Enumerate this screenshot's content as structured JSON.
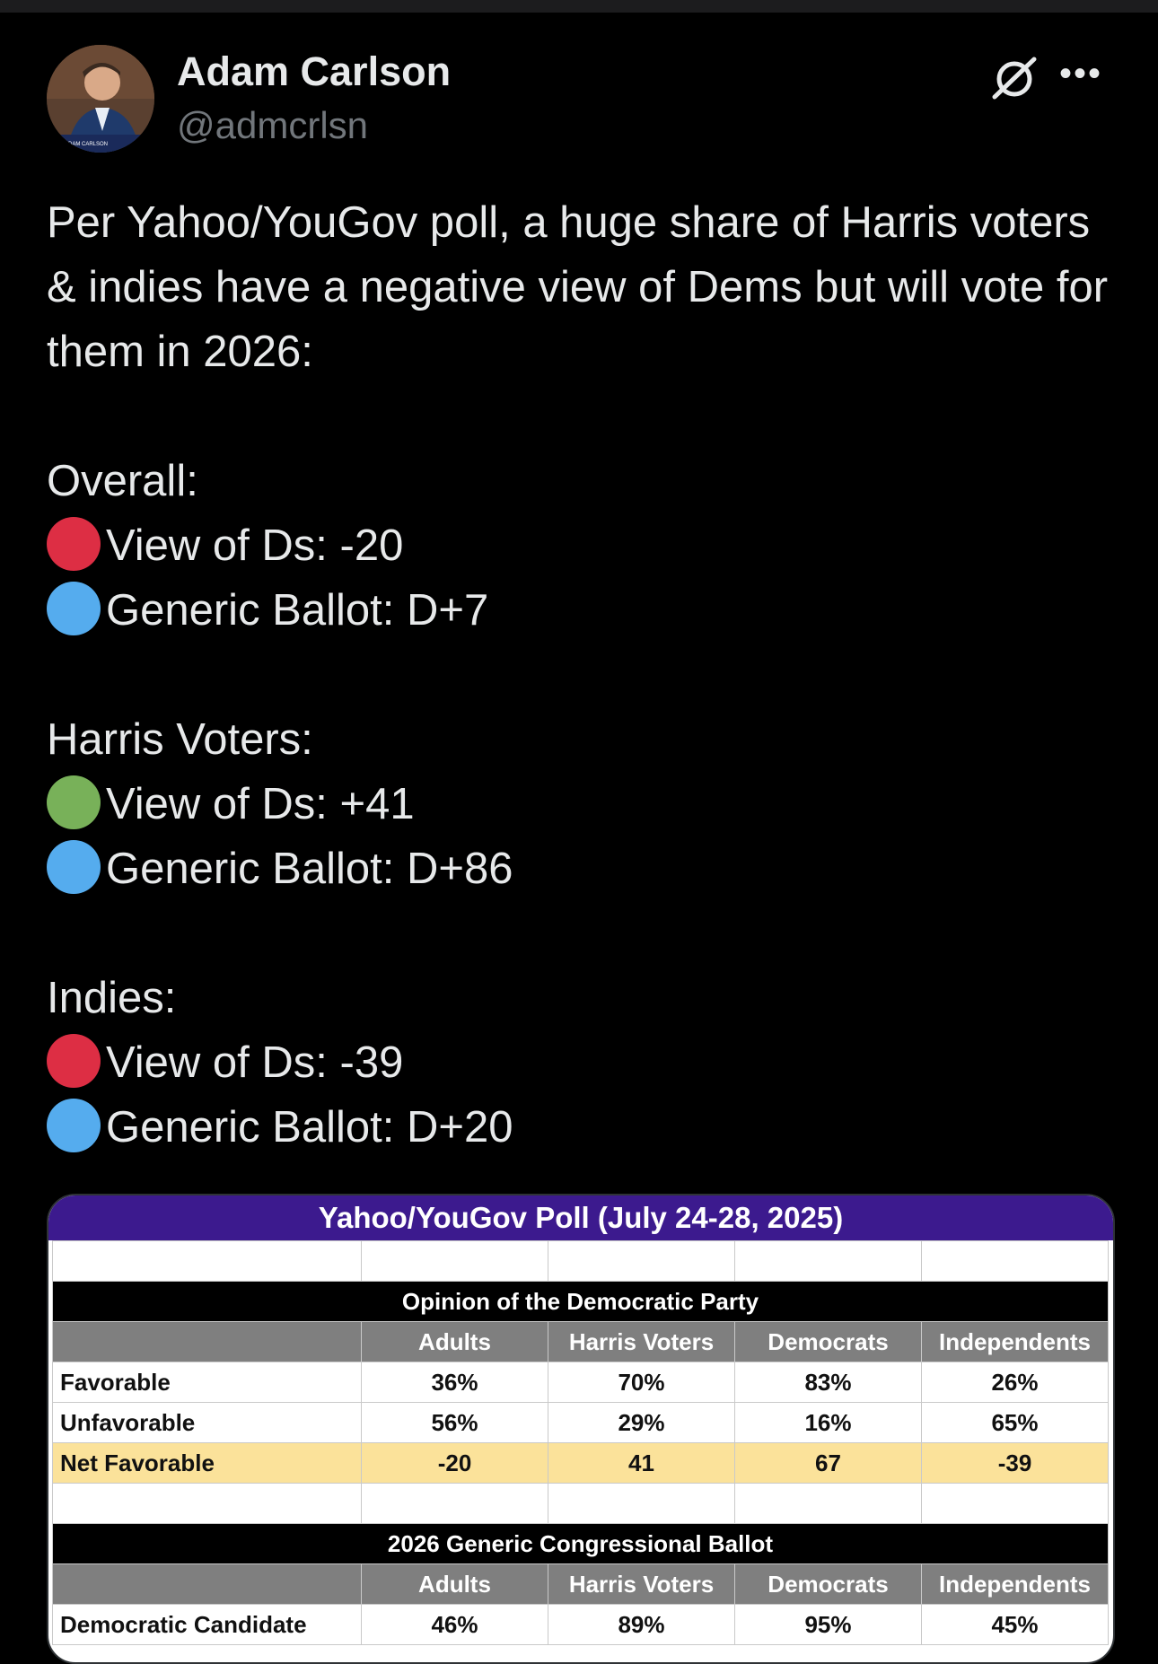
{
  "author": {
    "name": "Adam Carlson",
    "handle": "@admcrlsn",
    "avatar_caption": "ADAM CARLSON"
  },
  "icons": {
    "grok": "grok-icon",
    "more": "more-options-icon"
  },
  "tweet": {
    "intro": "Per Yahoo/YouGov poll, a huge share of Harris voters & indies have a negative view of Dems but will vote for them in 2026:",
    "sections": [
      {
        "heading": "Overall:",
        "lines": [
          {
            "dot_color": "#dd2e44",
            "text": "View of Ds: -20"
          },
          {
            "dot_color": "#55acee",
            "text": "Generic Ballot: D+7"
          }
        ]
      },
      {
        "heading": "Harris Voters:",
        "lines": [
          {
            "dot_color": "#78b159",
            "text": "View of Ds: +41"
          },
          {
            "dot_color": "#55acee",
            "text": "Generic Ballot: D+86"
          }
        ]
      },
      {
        "heading": "Indies:",
        "lines": [
          {
            "dot_color": "#dd2e44",
            "text": "View of Ds: -39"
          },
          {
            "dot_color": "#55acee",
            "text": "Generic Ballot: D+20"
          }
        ]
      }
    ]
  },
  "poll_image": {
    "title": "Yahoo/YouGov Poll (July 24-28, 2025)",
    "columns": [
      "Adults",
      "Harris Voters",
      "Democrats",
      "Independents"
    ],
    "opinion": {
      "heading": "Opinion of the Democratic Party",
      "rows": [
        {
          "label": "Favorable",
          "values": [
            "36%",
            "70%",
            "83%",
            "26%"
          ]
        },
        {
          "label": "Unfavorable",
          "values": [
            "56%",
            "29%",
            "16%",
            "65%"
          ]
        },
        {
          "label": "Net Favorable",
          "values": [
            "-20",
            "41",
            "67",
            "-39"
          ]
        }
      ]
    },
    "ballot": {
      "heading": "2026 Generic Congressional Ballot",
      "rows": [
        {
          "label": "Democratic Candidate",
          "values": [
            "46%",
            "89%",
            "95%",
            "45%"
          ]
        }
      ]
    }
  }
}
